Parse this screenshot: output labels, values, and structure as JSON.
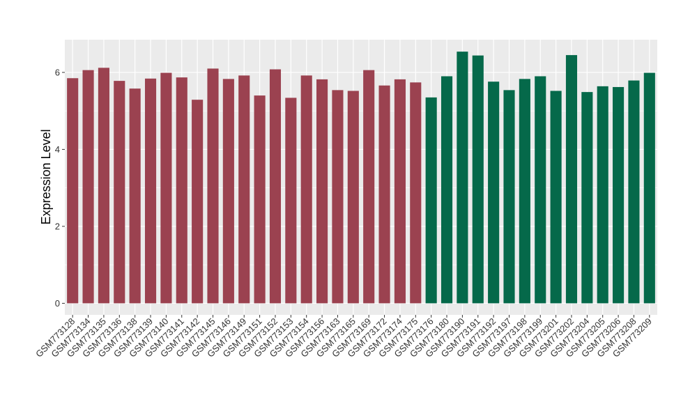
{
  "chart_data": {
    "type": "bar",
    "title": "",
    "xlabel": "",
    "ylabel": "Expression Level",
    "ylim": [
      -0.3,
      6.85
    ],
    "yticks": [
      0,
      2,
      4,
      6
    ],
    "grid": true,
    "legend": "none",
    "colors": {
      "group1": "#9b4250",
      "group2": "#05694a",
      "panel": "#ebebeb",
      "gridline": "#ffffff"
    },
    "categories": [
      "GSM773128",
      "GSM773134",
      "GSM773135",
      "GSM773136",
      "GSM773138",
      "GSM773139",
      "GSM773140",
      "GSM773141",
      "GSM773142",
      "GSM773145",
      "GSM773146",
      "GSM773149",
      "GSM773151",
      "GSM773152",
      "GSM773153",
      "GSM773154",
      "GSM773156",
      "GSM773163",
      "GSM773165",
      "GSM773169",
      "GSM773172",
      "GSM773174",
      "GSM773175",
      "GSM773176",
      "GSM773180",
      "GSM773190",
      "GSM773191",
      "GSM773192",
      "GSM773197",
      "GSM773198",
      "GSM773199",
      "GSM773201",
      "GSM773202",
      "GSM773204",
      "GSM773205",
      "GSM773206",
      "GSM773208",
      "GSM773209"
    ],
    "values": [
      5.85,
      6.06,
      6.12,
      5.78,
      5.58,
      5.84,
      5.99,
      5.87,
      5.29,
      6.1,
      5.83,
      5.92,
      5.4,
      6.08,
      5.34,
      5.92,
      5.82,
      5.54,
      5.52,
      6.06,
      5.66,
      5.82,
      5.74,
      5.35,
      5.9,
      6.54,
      6.44,
      5.76,
      5.54,
      5.83,
      5.9,
      5.52,
      6.45,
      5.49,
      5.64,
      5.62,
      5.79,
      5.99
    ],
    "groups": [
      1,
      1,
      1,
      1,
      1,
      1,
      1,
      1,
      1,
      1,
      1,
      1,
      1,
      1,
      1,
      1,
      1,
      1,
      1,
      1,
      1,
      1,
      1,
      2,
      2,
      2,
      2,
      2,
      2,
      2,
      2,
      2,
      2,
      2,
      2,
      2,
      2,
      2
    ]
  }
}
